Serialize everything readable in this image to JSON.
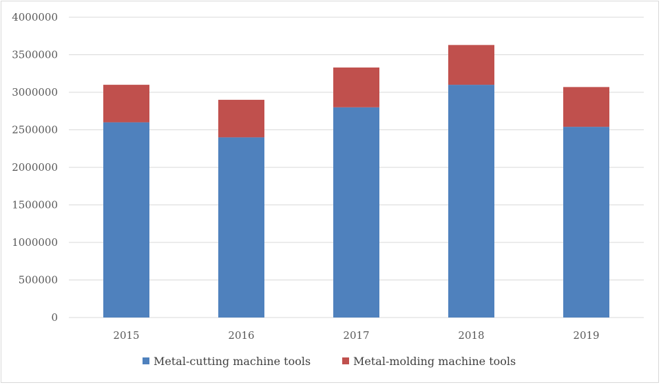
{
  "chart_data": {
    "type": "bar",
    "stacked": true,
    "categories": [
      "2015",
      "2016",
      "2017",
      "2018",
      "2019"
    ],
    "series": [
      {
        "name": "Metal-cutting machine tools",
        "color": "#4f81bd",
        "values": [
          2600000,
          2400000,
          2800000,
          3100000,
          2540000
        ]
      },
      {
        "name": "Metal-molding machine tools",
        "color": "#c0504d",
        "values": [
          500000,
          500000,
          530000,
          530000,
          530000
        ]
      }
    ],
    "title": "",
    "xlabel": "",
    "ylabel": "",
    "ylim": [
      0,
      4000000
    ],
    "yticks": [
      "0",
      "500000",
      "1000000",
      "1500000",
      "2000000",
      "2500000",
      "3000000",
      "3500000",
      "4000000"
    ],
    "grid": true,
    "gridline_color": "#d9d9d9",
    "legend_position": "bottom"
  }
}
